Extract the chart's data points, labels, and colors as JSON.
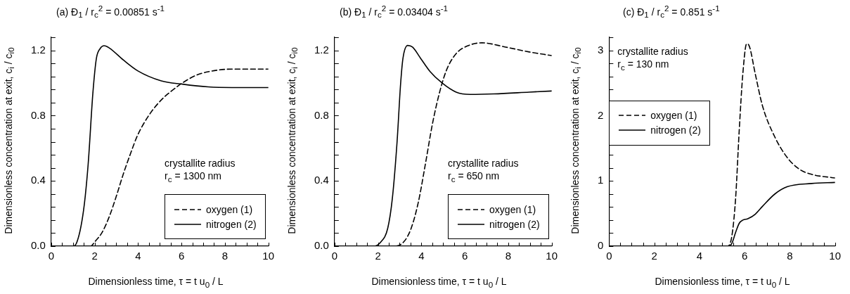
{
  "chart_data": [
    {
      "type": "line",
      "title": "(a) Đ$_{1}$ / r$_{c}$$^{2}$ = 0.00851 s$^{-1}$",
      "xlabel": "Dimensionless time, τ = t u$_{0}$ / L",
      "ylabel": "Dimensionless concentration at exit, c$_{i}$ / c$_{i0}$",
      "annotations": [
        "crystallite radius",
        "r$_{c}$ = 1300 nm"
      ],
      "legend": "bottom right",
      "marker": "none",
      "grid": false,
      "xlim": [
        0,
        10
      ],
      "xticks": [
        0,
        {
          "value": 0.5,
          "label": null
        },
        {
          "value": 1,
          "label": null
        },
        {
          "value": 1.5,
          "label": null
        },
        2,
        {
          "value": 2.5,
          "label": null
        },
        {
          "value": 3,
          "label": null
        },
        {
          "value": 3.5,
          "label": null
        },
        4,
        {
          "value": 4.5,
          "label": null
        },
        {
          "value": 5,
          "label": null
        },
        {
          "value": 5.5,
          "label": null
        },
        6,
        {
          "value": 6.5,
          "label": null
        },
        {
          "value": 7,
          "label": null
        },
        {
          "value": 7.5,
          "label": null
        },
        8,
        {
          "value": 8.5,
          "label": null
        },
        {
          "value": 9,
          "label": null
        },
        {
          "value": 9.5,
          "label": null
        },
        10
      ],
      "ylim": [
        0,
        1.28
      ],
      "yticks": [
        {
          "value": 0,
          "label": "0.0"
        },
        {
          "value": 0.08,
          "label": null
        },
        {
          "value": 0.16,
          "label": null
        },
        {
          "value": 0.24,
          "label": null
        },
        {
          "value": 0.32,
          "label": null
        },
        {
          "value": 0.4,
          "label": "0.4"
        },
        {
          "value": 0.48,
          "label": null
        },
        {
          "value": 0.56,
          "label": null
        },
        {
          "value": 0.64,
          "label": null
        },
        {
          "value": 0.72,
          "label": null
        },
        {
          "value": 0.8,
          "label": "0.8"
        },
        {
          "value": 0.88,
          "label": null
        },
        {
          "value": 0.96,
          "label": null
        },
        {
          "value": 1.04,
          "label": null
        },
        {
          "value": 1.12,
          "label": null
        },
        {
          "value": 1.2,
          "label": "1.2"
        },
        {
          "value": 1.28,
          "label": null
        }
      ],
      "series": [
        {
          "name": "oxygen (1)",
          "color": "#000000",
          "line_style": "dashed",
          "x": [
            0,
            1.81,
            2.03,
            2.35,
            2.68,
            3.0,
            3.33,
            3.66,
            3.98,
            4.52,
            5.07,
            5.61,
            6.04,
            6.69,
            7.23,
            8.32,
            10
          ],
          "values": [
            0,
            0,
            0.03,
            0.086,
            0.183,
            0.307,
            0.446,
            0.57,
            0.68,
            0.806,
            0.896,
            0.958,
            1.0,
            1.048,
            1.069,
            1.085,
            1.085
          ]
        },
        {
          "name": "nitrogen (2)",
          "color": "#000000",
          "line_style": "solid",
          "x": [
            0,
            1.0,
            1.16,
            1.49,
            1.7,
            1.92,
            2.08,
            2.25,
            2.44,
            2.68,
            3.33,
            3.98,
            5.07,
            6.04,
            7.23,
            8.32,
            10
          ],
          "values": [
            0,
            0,
            0.017,
            0.22,
            0.5,
            0.94,
            1.15,
            1.21,
            1.228,
            1.214,
            1.14,
            1.075,
            1.013,
            0.993,
            0.976,
            0.972,
            0.972
          ]
        }
      ]
    },
    {
      "type": "line",
      "title": "(b) Đ$_{1}$ / r$_{c}$$^{2}$ = 0.03404 s$^{-1}$",
      "xlabel": "Dimensionless time, τ = t u$_{0}$ / L",
      "ylabel": "Dimensionless concentration at exit, c$_{i}$ / c$_{i0}$",
      "annotations": [
        "crystallite radius",
        "r$_{c}$ = 650 nm"
      ],
      "legend": "bottom right",
      "marker": "none",
      "grid": false,
      "xlim": [
        0,
        10
      ],
      "xticks": [
        0,
        {
          "value": 0.5,
          "label": null
        },
        {
          "value": 1,
          "label": null
        },
        {
          "value": 1.5,
          "label": null
        },
        2,
        {
          "value": 2.5,
          "label": null
        },
        {
          "value": 3,
          "label": null
        },
        {
          "value": 3.5,
          "label": null
        },
        4,
        {
          "value": 4.5,
          "label": null
        },
        {
          "value": 5,
          "label": null
        },
        {
          "value": 5.5,
          "label": null
        },
        6,
        {
          "value": 6.5,
          "label": null
        },
        {
          "value": 7,
          "label": null
        },
        {
          "value": 7.5,
          "label": null
        },
        8,
        {
          "value": 8.5,
          "label": null
        },
        {
          "value": 9,
          "label": null
        },
        {
          "value": 9.5,
          "label": null
        },
        10
      ],
      "ylim": [
        0,
        1.28
      ],
      "yticks": [
        {
          "value": 0,
          "label": "0.0"
        },
        {
          "value": 0.08,
          "label": null
        },
        {
          "value": 0.16,
          "label": null
        },
        {
          "value": 0.24,
          "label": null
        },
        {
          "value": 0.32,
          "label": null
        },
        {
          "value": 0.4,
          "label": "0.4"
        },
        {
          "value": 0.48,
          "label": null
        },
        {
          "value": 0.56,
          "label": null
        },
        {
          "value": 0.64,
          "label": null
        },
        {
          "value": 0.72,
          "label": null
        },
        {
          "value": 0.8,
          "label": "0.8"
        },
        {
          "value": 0.88,
          "label": null
        },
        {
          "value": 0.96,
          "label": null
        },
        {
          "value": 1.04,
          "label": null
        },
        {
          "value": 1.12,
          "label": null
        },
        {
          "value": 1.2,
          "label": "1.2"
        },
        {
          "value": 1.28,
          "label": null
        }
      ],
      "series": [
        {
          "name": "oxygen (1)",
          "color": "#000000",
          "line_style": "dashed",
          "x": [
            0,
            2.77,
            3.21,
            3.53,
            3.86,
            4.18,
            4.51,
            4.84,
            5.16,
            5.6,
            6.14,
            6.79,
            7.88,
            8.97,
            10
          ],
          "values": [
            0,
            0,
            0.03,
            0.11,
            0.27,
            0.5,
            0.75,
            0.944,
            1.08,
            1.18,
            1.228,
            1.246,
            1.22,
            1.19,
            1.168
          ]
        },
        {
          "name": "nitrogen (2)",
          "color": "#000000",
          "line_style": "solid",
          "x": [
            0,
            1.79,
            2.12,
            2.45,
            2.66,
            2.88,
            3.04,
            3.15,
            3.37,
            3.59,
            3.97,
            4.4,
            4.95,
            5.6,
            6.25,
            7.34,
            8.97,
            10
          ],
          "values": [
            0,
            0,
            0.024,
            0.11,
            0.29,
            0.64,
            0.99,
            1.15,
            1.23,
            1.22,
            1.15,
            1.07,
            1.0,
            0.944,
            0.93,
            0.933,
            0.944,
            0.951
          ]
        }
      ]
    },
    {
      "type": "line",
      "title": "(c) Đ$_{1}$ / r$_{c}$$^{2}$ = 0.851 s$^{-1}$",
      "xlabel": "Dimensionless time, τ = t u$_{0}$ / L",
      "ylabel": "Dimensionless concentration at exit, c$_{i}$ / c$_{i0}$",
      "annotations": [
        "crystallite radius",
        "r$_{c}$ = 130 nm"
      ],
      "legend": "left",
      "marker": "none",
      "grid": false,
      "xlim": [
        0,
        10
      ],
      "xticks": [
        0,
        {
          "value": 0.5,
          "label": null
        },
        {
          "value": 1,
          "label": null
        },
        {
          "value": 1.5,
          "label": null
        },
        2,
        {
          "value": 2.5,
          "label": null
        },
        {
          "value": 3,
          "label": null
        },
        {
          "value": 3.5,
          "label": null
        },
        4,
        {
          "value": 4.5,
          "label": null
        },
        {
          "value": 5,
          "label": null
        },
        {
          "value": 5.5,
          "label": null
        },
        6,
        {
          "value": 6.5,
          "label": null
        },
        {
          "value": 7,
          "label": null
        },
        {
          "value": 7.5,
          "label": null
        },
        8,
        {
          "value": 8.5,
          "label": null
        },
        {
          "value": 9,
          "label": null
        },
        {
          "value": 9.5,
          "label": null
        },
        10
      ],
      "ylim": [
        0,
        3.2
      ],
      "yticks": [
        0,
        {
          "value": 0.2,
          "label": null
        },
        {
          "value": 0.4,
          "label": null
        },
        {
          "value": 0.6,
          "label": null
        },
        {
          "value": 0.8,
          "label": null
        },
        1,
        {
          "value": 1.2,
          "label": null
        },
        {
          "value": 1.4,
          "label": null
        },
        {
          "value": 1.6,
          "label": null
        },
        {
          "value": 1.8,
          "label": null
        },
        2,
        {
          "value": 2.2,
          "label": null
        },
        {
          "value": 2.4,
          "label": null
        },
        {
          "value": 2.6,
          "label": null
        },
        {
          "value": 2.8,
          "label": null
        },
        3,
        {
          "value": 3.2,
          "label": null
        }
      ],
      "series": [
        {
          "name": "oxygen (1)",
          "color": "#000000",
          "line_style": "dashed",
          "x": [
            0,
            5.22,
            5.43,
            5.6,
            5.76,
            5.92,
            6.09,
            6.2,
            6.47,
            6.79,
            7.34,
            7.88,
            8.42,
            8.97,
            10
          ],
          "values": [
            0,
            0,
            0.145,
            0.73,
            1.77,
            2.64,
            3.1,
            3.07,
            2.64,
            2.15,
            1.67,
            1.36,
            1.18,
            1.1,
            1.045
          ]
        },
        {
          "name": "nitrogen (2)",
          "color": "#000000",
          "line_style": "solid",
          "x": [
            0,
            5.27,
            5.43,
            5.6,
            5.76,
            5.92,
            6.14,
            6.47,
            6.79,
            7.34,
            7.88,
            8.97,
            10
          ],
          "values": [
            0,
            0,
            0.04,
            0.21,
            0.35,
            0.4,
            0.42,
            0.49,
            0.61,
            0.8,
            0.91,
            0.96,
            0.976
          ]
        }
      ]
    }
  ]
}
